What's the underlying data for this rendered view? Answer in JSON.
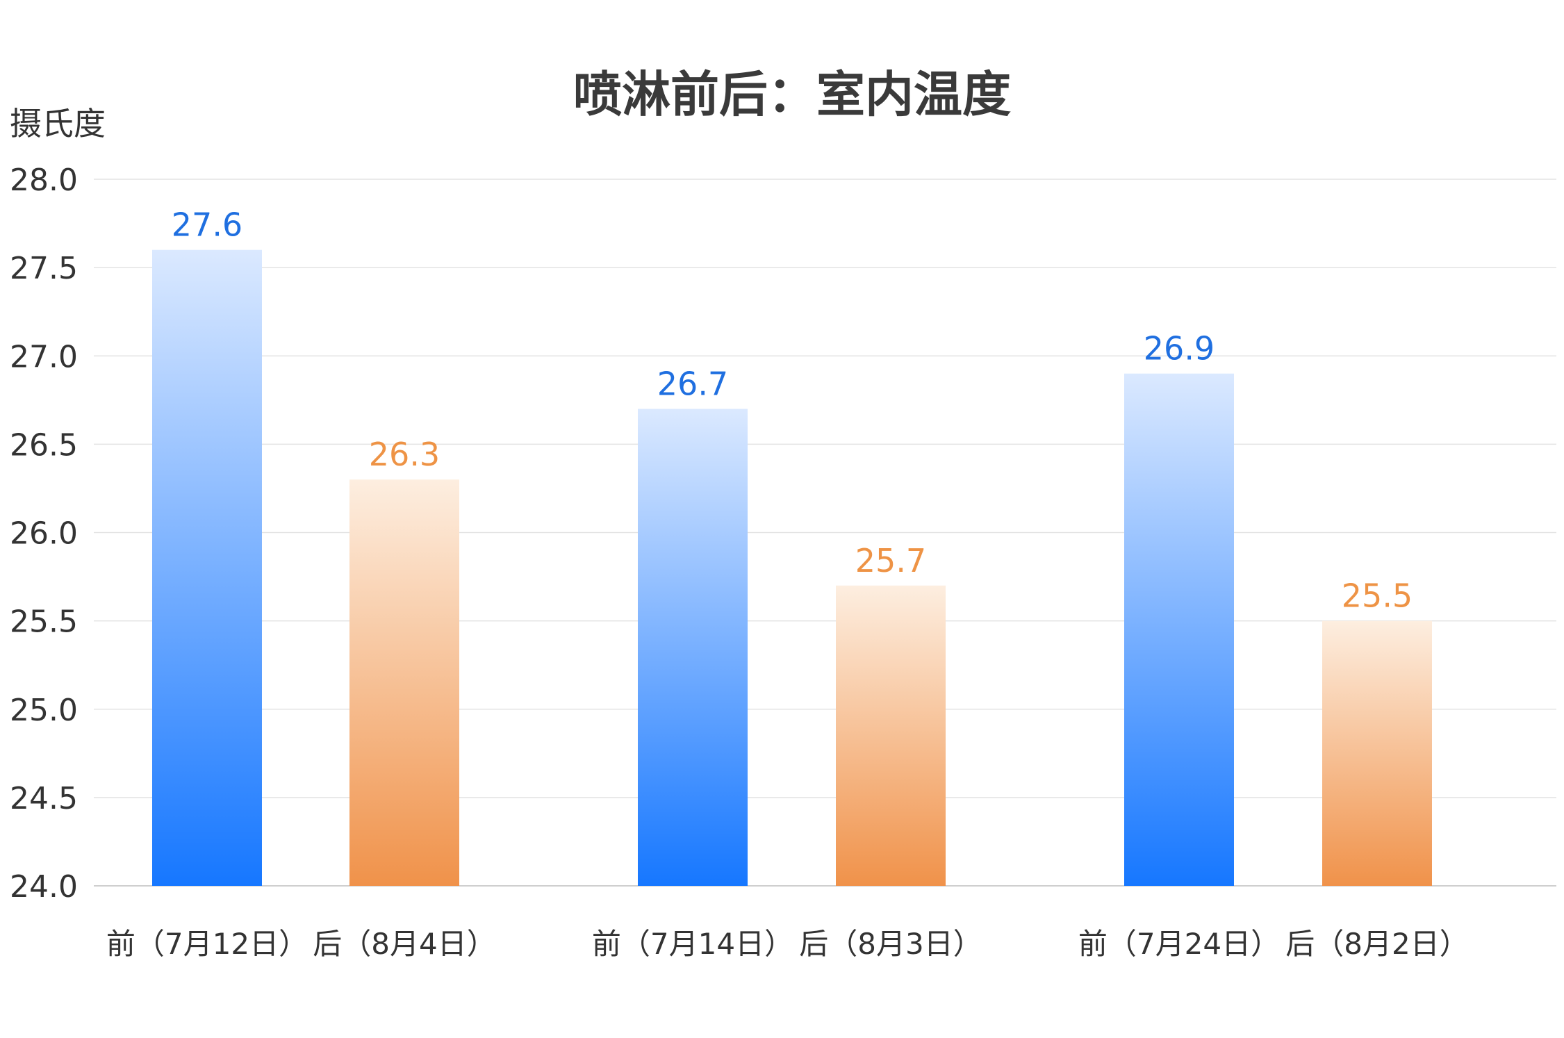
{
  "chart_data": {
    "type": "bar",
    "title": "喷淋前后：室内温度",
    "ylabel": "摄氏度",
    "xlabel": "",
    "ylim": [
      24.0,
      28.0
    ],
    "y_ticks": [
      "24.0",
      "24.5",
      "25.0",
      "25.5",
      "26.0",
      "26.5",
      "27.0",
      "27.5",
      "28.0"
    ],
    "grid": true,
    "legend": "none",
    "categories": [
      "前（7月12日）",
      "后（8月4日）",
      "前（7月14日）",
      "后（8月3日）",
      "前（7月24日）",
      "后（8月2日）"
    ],
    "values": [
      27.6,
      26.3,
      26.7,
      25.7,
      26.9,
      25.5
    ],
    "value_labels": [
      "27.6",
      "26.3",
      "26.7",
      "25.7",
      "26.9",
      "25.5"
    ],
    "bar_kind": [
      "before",
      "after",
      "before",
      "after",
      "before",
      "after"
    ],
    "groups": 3,
    "colors": {
      "before_top": "#dbe9ff",
      "before_bottom": "#1677ff",
      "before_label": "#1f6fe0",
      "after_top": "#fdeee0",
      "after_bottom": "#f0924a",
      "after_label": "#ee9345",
      "grid": "#e3e3e3",
      "axis_text": "#333333",
      "title": "#3a3a3a"
    }
  }
}
